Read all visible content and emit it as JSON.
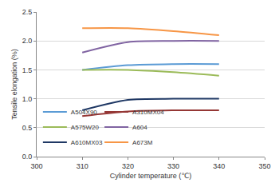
{
  "chart_data": {
    "type": "line",
    "x_label": "Cylinder temperature (℃)",
    "y_label": "Tensile elongation (%)",
    "x": [
      310,
      320,
      330,
      340
    ],
    "series": [
      {
        "name": "A504X90",
        "color": "#5b9bd5",
        "values": [
          1.5,
          1.58,
          1.6,
          1.6
        ]
      },
      {
        "name": "A310MX04",
        "color": "#953735",
        "values": [
          0.7,
          0.78,
          0.8,
          0.8
        ]
      },
      {
        "name": "A575W20",
        "color": "#9bbb59",
        "values": [
          1.5,
          1.5,
          1.46,
          1.4
        ]
      },
      {
        "name": "A604",
        "color": "#8064a2",
        "values": [
          1.8,
          1.98,
          2.0,
          2.0
        ]
      },
      {
        "name": "A610MX03",
        "color": "#1f3864",
        "values": [
          0.8,
          0.98,
          1.0,
          1.0
        ]
      },
      {
        "name": "A673M",
        "color": "#f79646",
        "values": [
          2.22,
          2.22,
          2.17,
          2.1
        ]
      }
    ],
    "xlim": [
      300,
      350
    ],
    "xticks": [
      300,
      310,
      320,
      330,
      340,
      350
    ],
    "ylim": [
      0,
      2.5
    ],
    "yticks": [
      {
        "value": 0,
        "label": "0.0"
      },
      {
        "value": 0.5,
        "label": "0.5"
      },
      {
        "value": 1,
        "label": "1.0"
      },
      {
        "value": 1.5,
        "label": "1.5"
      },
      {
        "value": 2,
        "label": "2.0"
      },
      {
        "value": 2.5,
        "label": "2.5"
      }
    ],
    "grid": true,
    "legend": "lower left"
  }
}
